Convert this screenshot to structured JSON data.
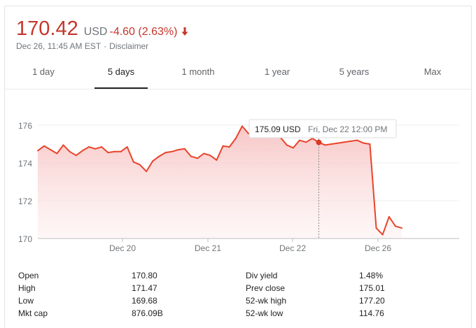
{
  "quote": {
    "price": "170.42",
    "currency": "USD",
    "change": "-4.60 (2.63%)",
    "timestamp": "Dec 26, 11:45 AM EST",
    "disclaimer": "Disclaimer"
  },
  "tabs": [
    {
      "label": "1 day",
      "active": false
    },
    {
      "label": "5 days",
      "active": true
    },
    {
      "label": "1 month",
      "active": false
    },
    {
      "label": "1 year",
      "active": false
    },
    {
      "label": "5 years",
      "active": false
    },
    {
      "label": "Max",
      "active": false
    }
  ],
  "tooltip": {
    "price": "175.09 USD",
    "time": "Fri, Dec 22 12:00 PM"
  },
  "colors": {
    "accent": "#c5362b",
    "line": "#e8442a",
    "fill": "#fbd6d6",
    "muted": "#70757a"
  },
  "chart_data": {
    "type": "area",
    "xlabel": "",
    "ylabel": "",
    "ylim": [
      170,
      176.4
    ],
    "y_ticks": [
      170,
      172,
      174,
      176
    ],
    "x_ticks": [
      "Dec 20",
      "Dec 21",
      "Dec 22",
      "Dec 26"
    ],
    "grid": true,
    "highlight_index": 44,
    "series": [
      {
        "values": [
          174.65,
          174.9,
          174.7,
          174.5,
          174.95,
          174.6,
          174.4,
          174.65,
          174.85,
          174.75,
          174.85,
          174.55,
          174.6,
          174.6,
          174.85,
          174.05,
          173.9,
          173.55,
          174.1,
          174.35,
          174.55,
          174.6,
          174.7,
          174.75,
          174.35,
          174.25,
          174.5,
          174.4,
          174.15,
          174.9,
          174.85,
          175.3,
          175.95,
          175.55,
          175.65,
          175.7,
          175.55,
          175.6,
          175.35,
          174.95,
          174.8,
          175.2,
          175.1,
          175.3,
          175.09,
          174.95,
          175.0,
          175.05,
          175.1,
          175.15,
          175.2,
          175.05,
          175.0,
          170.55,
          170.2,
          171.15,
          170.65,
          170.55
        ]
      }
    ]
  },
  "stats": {
    "left": [
      {
        "label": "Open",
        "value": "170.80"
      },
      {
        "label": "High",
        "value": "171.47"
      },
      {
        "label": "Low",
        "value": "169.68"
      },
      {
        "label": "Mkt cap",
        "value": "876.09B"
      }
    ],
    "right": [
      {
        "label": "Div yield",
        "value": "1.48%"
      },
      {
        "label": "Prev close",
        "value": "175.01"
      },
      {
        "label": "52-wk high",
        "value": "177.20"
      },
      {
        "label": "52-wk low",
        "value": "114.76"
      }
    ]
  }
}
